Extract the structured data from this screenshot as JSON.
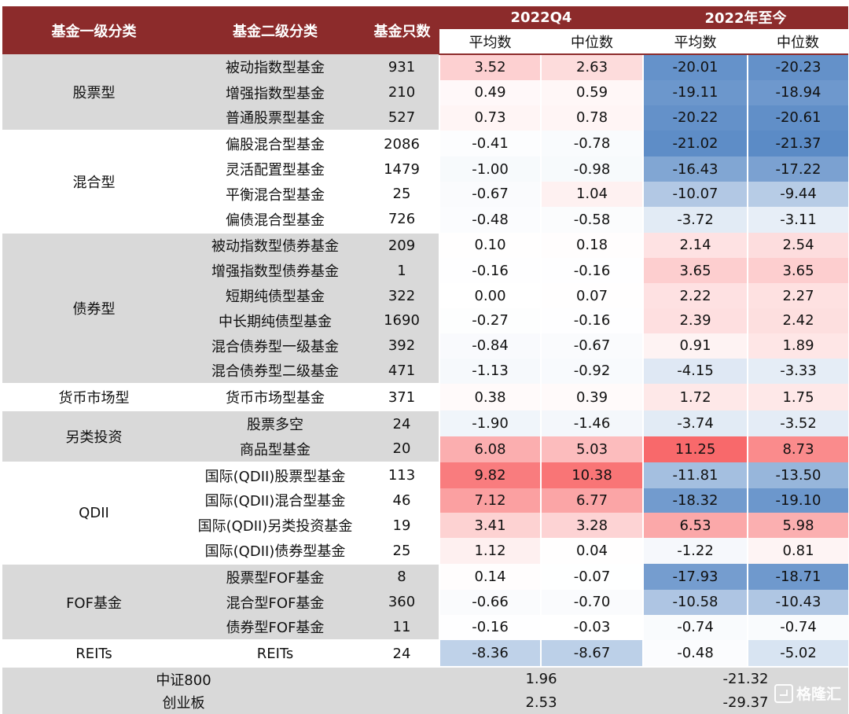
{
  "header": {
    "col1": "基金一级分类",
    "col2": "基金二级分类",
    "col3": "基金只数",
    "group1": "2022Q4",
    "group2": "2022年至今",
    "avg": "平均数",
    "median": "中位数"
  },
  "groups": [
    {
      "name": "股票型",
      "shade": true,
      "rows": [
        {
          "name": "被动指数型基金",
          "count": "931",
          "q4_avg": "3.52",
          "q4_med": "2.63",
          "ytd_avg": "-20.01",
          "ytd_med": "-20.23"
        },
        {
          "name": "增强指数型基金",
          "count": "210",
          "q4_avg": "0.49",
          "q4_med": "0.59",
          "ytd_avg": "-19.11",
          "ytd_med": "-18.94"
        },
        {
          "name": "普通股票型基金",
          "count": "527",
          "q4_avg": "0.73",
          "q4_med": "0.78",
          "ytd_avg": "-20.22",
          "ytd_med": "-20.61"
        }
      ]
    },
    {
      "name": "混合型",
      "shade": false,
      "rows": [
        {
          "name": "偏股混合型基金",
          "count": "2086",
          "q4_avg": "-0.41",
          "q4_med": "-0.78",
          "ytd_avg": "-21.02",
          "ytd_med": "-21.37"
        },
        {
          "name": "灵活配置型基金",
          "count": "1479",
          "q4_avg": "-1.00",
          "q4_med": "-0.98",
          "ytd_avg": "-16.43",
          "ytd_med": "-17.22"
        },
        {
          "name": "平衡混合型基金",
          "count": "25",
          "q4_avg": "-0.67",
          "q4_med": "1.04",
          "ytd_avg": "-10.07",
          "ytd_med": "-9.44"
        },
        {
          "name": "偏债混合型基金",
          "count": "726",
          "q4_avg": "-0.48",
          "q4_med": "-0.58",
          "ytd_avg": "-3.72",
          "ytd_med": "-3.11"
        }
      ]
    },
    {
      "name": "债券型",
      "shade": true,
      "rows": [
        {
          "name": "被动指数型债券基金",
          "count": "209",
          "q4_avg": "0.10",
          "q4_med": "0.18",
          "ytd_avg": "2.14",
          "ytd_med": "2.54"
        },
        {
          "name": "增强指数型债券基金",
          "count": "1",
          "q4_avg": "-0.16",
          "q4_med": "-0.16",
          "ytd_avg": "3.65",
          "ytd_med": "3.65"
        },
        {
          "name": "短期纯债型基金",
          "count": "322",
          "q4_avg": "0.00",
          "q4_med": "0.07",
          "ytd_avg": "2.22",
          "ytd_med": "2.27"
        },
        {
          "name": "中长期纯债型基金",
          "count": "1690",
          "q4_avg": "-0.27",
          "q4_med": "-0.16",
          "ytd_avg": "2.39",
          "ytd_med": "2.42"
        },
        {
          "name": "混合债券型一级基金",
          "count": "392",
          "q4_avg": "-0.84",
          "q4_med": "-0.67",
          "ytd_avg": "0.91",
          "ytd_med": "1.89"
        },
        {
          "name": "混合债券型二级基金",
          "count": "471",
          "q4_avg": "-1.13",
          "q4_med": "-0.92",
          "ytd_avg": "-4.15",
          "ytd_med": "-3.33"
        }
      ]
    },
    {
      "name": "货币市场型",
      "shade": false,
      "rows": [
        {
          "name": "货币市场型基金",
          "count": "371",
          "q4_avg": "0.38",
          "q4_med": "0.39",
          "ytd_avg": "1.72",
          "ytd_med": "1.75"
        }
      ]
    },
    {
      "name": "另类投资",
      "shade": true,
      "rows": [
        {
          "name": "股票多空",
          "count": "24",
          "q4_avg": "-1.90",
          "q4_med": "-1.46",
          "ytd_avg": "-3.74",
          "ytd_med": "-3.52"
        },
        {
          "name": "商品型基金",
          "count": "20",
          "q4_avg": "6.08",
          "q4_med": "5.03",
          "ytd_avg": "11.25",
          "ytd_med": "8.73"
        }
      ]
    },
    {
      "name": "QDII",
      "shade": false,
      "rows": [
        {
          "name": "国际(QDII)股票型基金",
          "count": "113",
          "q4_avg": "9.82",
          "q4_med": "10.38",
          "ytd_avg": "-11.81",
          "ytd_med": "-13.50"
        },
        {
          "name": "国际(QDII)混合型基金",
          "count": "46",
          "q4_avg": "7.12",
          "q4_med": "6.77",
          "ytd_avg": "-18.32",
          "ytd_med": "-19.10"
        },
        {
          "name": "国际(QDII)另类投资基金",
          "count": "19",
          "q4_avg": "3.41",
          "q4_med": "3.28",
          "ytd_avg": "6.53",
          "ytd_med": "5.98"
        },
        {
          "name": "国际(QDII)债券型基金",
          "count": "25",
          "q4_avg": "1.12",
          "q4_med": "0.04",
          "ytd_avg": "-1.22",
          "ytd_med": "0.81"
        }
      ]
    },
    {
      "name": "FOF基金",
      "shade": true,
      "rows": [
        {
          "name": "股票型FOF基金",
          "count": "8",
          "q4_avg": "0.14",
          "q4_med": "-0.07",
          "ytd_avg": "-17.93",
          "ytd_med": "-18.71"
        },
        {
          "name": "混合型FOF基金",
          "count": "360",
          "q4_avg": "-0.66",
          "q4_med": "-0.70",
          "ytd_avg": "-10.58",
          "ytd_med": "-10.43"
        },
        {
          "name": "债券型FOF基金",
          "count": "11",
          "q4_avg": "-0.16",
          "q4_med": "-0.03",
          "ytd_avg": "-0.74",
          "ytd_med": "-0.74"
        }
      ]
    },
    {
      "name": "REITs",
      "shade": false,
      "rows": [
        {
          "name": "REITs",
          "count": "24",
          "q4_avg": "-8.36",
          "q4_med": "-8.67",
          "ytd_avg": "-0.48",
          "ytd_med": "-5.02"
        }
      ]
    }
  ],
  "benchmarks": [
    {
      "name": "中证800",
      "q4": "1.96",
      "ytd": "-21.32"
    },
    {
      "name": "创业板",
      "q4": "2.53",
      "ytd": "-29.37"
    }
  ],
  "colors": {
    "header": "#8C2B2B",
    "positive": "#F8696B",
    "negative": "#5A8AC6",
    "shade": "#D9D9D9"
  },
  "watermark": {
    "icon": "gelonghui-logo-icon",
    "text": "格隆汇"
  }
}
